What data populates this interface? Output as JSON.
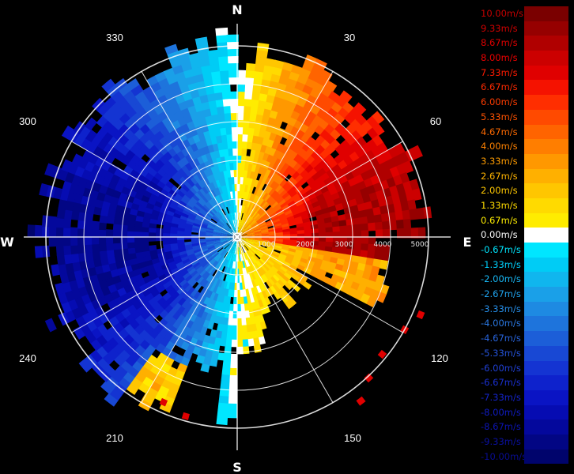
{
  "compass": {
    "north": "N",
    "east": "E",
    "south": "S",
    "west": "W"
  },
  "azimuth_labels": [
    "30",
    "60",
    "120",
    "150",
    "210",
    "240",
    "300",
    "330"
  ],
  "range_labels": [
    "1000",
    "2000",
    "3000",
    "4000",
    "5000"
  ],
  "legend": [
    {
      "label": "10.00m/s",
      "color": "#7a0000",
      "text_color": "#c40000"
    },
    {
      "label": "9.33m/s",
      "color": "#960000",
      "text_color": "#d20000"
    },
    {
      "label": "8.67m/s",
      "color": "#b00000",
      "text_color": "#e00000"
    },
    {
      "label": "8.00m/s",
      "color": "#cc0000",
      "text_color": "#f00000"
    },
    {
      "label": "7.33m/s",
      "color": "#e00000",
      "text_color": "#ff1a00"
    },
    {
      "label": "6.67m/s",
      "color": "#f51200",
      "text_color": "#ff2a00"
    },
    {
      "label": "6.00m/s",
      "color": "#ff2e00",
      "text_color": "#ff3c00"
    },
    {
      "label": "5.33m/s",
      "color": "#ff4a00",
      "text_color": "#ff5200"
    },
    {
      "label": "4.67m/s",
      "color": "#ff6400",
      "text_color": "#ff6a00"
    },
    {
      "label": "4.00m/s",
      "color": "#ff7e00",
      "text_color": "#ff8200"
    },
    {
      "label": "3.33m/s",
      "color": "#ff9800",
      "text_color": "#ff9c00"
    },
    {
      "label": "2.67m/s",
      "color": "#ffb000",
      "text_color": "#ffb400"
    },
    {
      "label": "2.00m/s",
      "color": "#ffc600",
      "text_color": "#ffc800"
    },
    {
      "label": "1.33m/s",
      "color": "#ffda00",
      "text_color": "#ffdc00"
    },
    {
      "label": "0.67m/s",
      "color": "#ffec00",
      "text_color": "#ffee00"
    },
    {
      "label": "0.00m/s",
      "color": "#ffffff",
      "text_color": "#ffffff"
    },
    {
      "label": "-0.67m/s",
      "color": "#00e6ff",
      "text_color": "#00e6ff"
    },
    {
      "label": "-1.33m/s",
      "color": "#00ccf5",
      "text_color": "#00d2ff"
    },
    {
      "label": "-2.00m/s",
      "color": "#10b6ee",
      "text_color": "#18b8f5"
    },
    {
      "label": "-2.67m/s",
      "color": "#1aa0e8",
      "text_color": "#20a4ef"
    },
    {
      "label": "-3.33m/s",
      "color": "#1e8ae2",
      "text_color": "#268ee8"
    },
    {
      "label": "-4.00m/s",
      "color": "#1e74dc",
      "text_color": "#2a78e2"
    },
    {
      "label": "-4.67m/s",
      "color": "#1c5ed8",
      "text_color": "#2864dc"
    },
    {
      "label": "-5.33m/s",
      "color": "#1848d4",
      "text_color": "#2452d8"
    },
    {
      "label": "-6.00m/s",
      "color": "#1434d2",
      "text_color": "#2040d4"
    },
    {
      "label": "-6.67m/s",
      "color": "#0e22cc",
      "text_color": "#1a30d0"
    },
    {
      "label": "-7.33m/s",
      "color": "#0a14c4",
      "text_color": "#1424cc"
    },
    {
      "label": "-8.00m/s",
      "color": "#060cb2",
      "text_color": "#101cc4"
    },
    {
      "label": "-8.67m/s",
      "color": "#04089c",
      "text_color": "#0c14b4"
    },
    {
      "label": "-9.33m/s",
      "color": "#020684",
      "text_color": "#0a10a2"
    },
    {
      "label": "-10.00m/s",
      "color": "#00046c",
      "text_color": "#080c90"
    }
  ]
}
